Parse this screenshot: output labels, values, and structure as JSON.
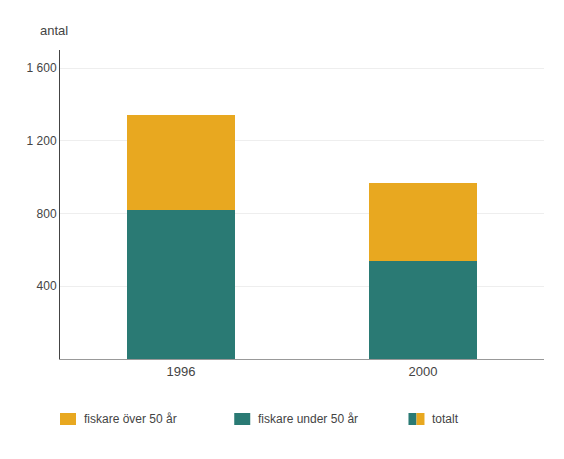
{
  "chart_data": {
    "type": "bar",
    "stacked": true,
    "ylabel": "antal",
    "categories": [
      "1996",
      "2000"
    ],
    "series": [
      {
        "name": "fiskare under 50 år",
        "color": "#2a7a74",
        "values": [
          820,
          540
        ]
      },
      {
        "name": "fiskare över 50 år",
        "color": "#e8a820",
        "values": [
          520,
          430
        ]
      }
    ],
    "annotations": [
      "totalt"
    ],
    "ylim": [
      0,
      1700
    ],
    "yticks": [
      400,
      800,
      {
        "value": 1200,
        "label": "1 200"
      },
      {
        "value": 1600,
        "label": "1 600"
      }
    ],
    "grid": true,
    "legend": "bottom"
  }
}
